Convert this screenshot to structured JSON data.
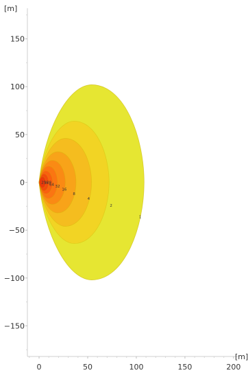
{
  "chart_data": {
    "type": "contour",
    "x_unit": "[m]",
    "y_unit": "[m]",
    "xlim": [
      -12,
      205
    ],
    "ylim": [
      -182,
      182
    ],
    "x_ticks": [
      0,
      50,
      100,
      150,
      200
    ],
    "y_ticks": [
      150,
      100,
      50,
      0,
      -50,
      -100,
      -150
    ],
    "grid": false,
    "levels": [
      {
        "value": 1,
        "label": "1",
        "color": "#e6e632",
        "x_extent": [
          0,
          108
        ],
        "y_extent": [
          -102,
          102
        ],
        "label_at": [
          104,
          -36
        ]
      },
      {
        "value": 2,
        "label": "2",
        "color": "#f2d424",
        "x_extent": [
          0,
          72
        ],
        "y_extent": [
          -64,
          64
        ],
        "label_at": [
          74,
          -24
        ]
      },
      {
        "value": 4,
        "label": "4",
        "color": "#f5bd1f",
        "x_extent": [
          0,
          54
        ],
        "y_extent": [
          -46,
          46
        ],
        "label_at": [
          51,
          -17
        ]
      },
      {
        "value": 8,
        "label": "8",
        "color": "#f8a319",
        "x_extent": [
          0,
          38
        ],
        "y_extent": [
          -32,
          32
        ],
        "label_at": [
          36,
          -12
        ]
      },
      {
        "value": 16,
        "label": "16",
        "color": "#fa8a14",
        "x_extent": [
          0,
          27
        ],
        "y_extent": [
          -23,
          23
        ],
        "label_at": [
          26,
          -7
        ]
      },
      {
        "value": 32,
        "label": "32",
        "color": "#fb7512",
        "x_extent": [
          0,
          19
        ],
        "y_extent": [
          -17,
          17
        ],
        "label_at": [
          19,
          -4
        ]
      },
      {
        "value": 64,
        "label": "64",
        "color": "#f9600f",
        "x_extent": [
          0,
          14
        ],
        "y_extent": [
          -12,
          12
        ],
        "label_at": [
          13,
          -2
        ]
      },
      {
        "value": 128,
        "label": "128",
        "color": "#f24a0c",
        "x_extent": [
          0,
          10
        ],
        "y_extent": [
          -9,
          9
        ],
        "label_at": [
          9,
          0
        ]
      },
      {
        "value": 256,
        "label": "256",
        "color": "#ea3a0a",
        "x_extent": [
          0,
          7
        ],
        "y_extent": [
          -6,
          6
        ],
        "label_at": [
          6,
          0
        ]
      }
    ]
  }
}
